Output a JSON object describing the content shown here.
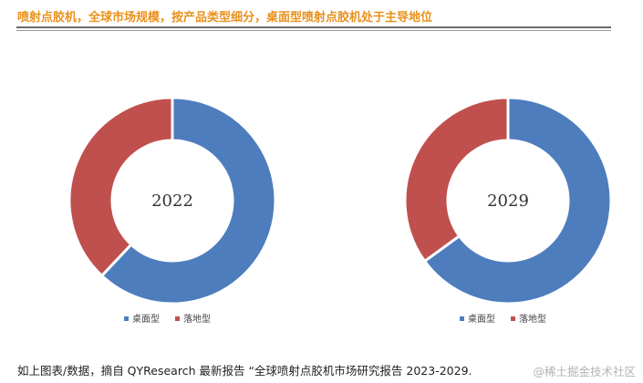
{
  "header": {
    "title": "喷射点胶机，全球市场规模，按产品类型细分，桌面型喷射点胶机处于主导地位"
  },
  "colors": {
    "series_desktop": "#4e7dbd",
    "series_floor": "#c0504d",
    "title_accent": "#e8911c"
  },
  "chart_data": [
    {
      "type": "pie",
      "style": "donut",
      "center_label": "2022",
      "categories": [
        "桌面型",
        "落地型"
      ],
      "values": [
        62,
        38
      ],
      "legend_position": "bottom"
    },
    {
      "type": "pie",
      "style": "donut",
      "center_label": "2029",
      "categories": [
        "桌面型",
        "落地型"
      ],
      "values": [
        65,
        35
      ],
      "legend_position": "bottom"
    }
  ],
  "footer": {
    "source_text": "如上图表/数据，摘自 QYResearch 最新报告 “全球喷射点胶机市场研究报告 2023-2029.",
    "watermark": "@稀土掘金技术社区"
  }
}
